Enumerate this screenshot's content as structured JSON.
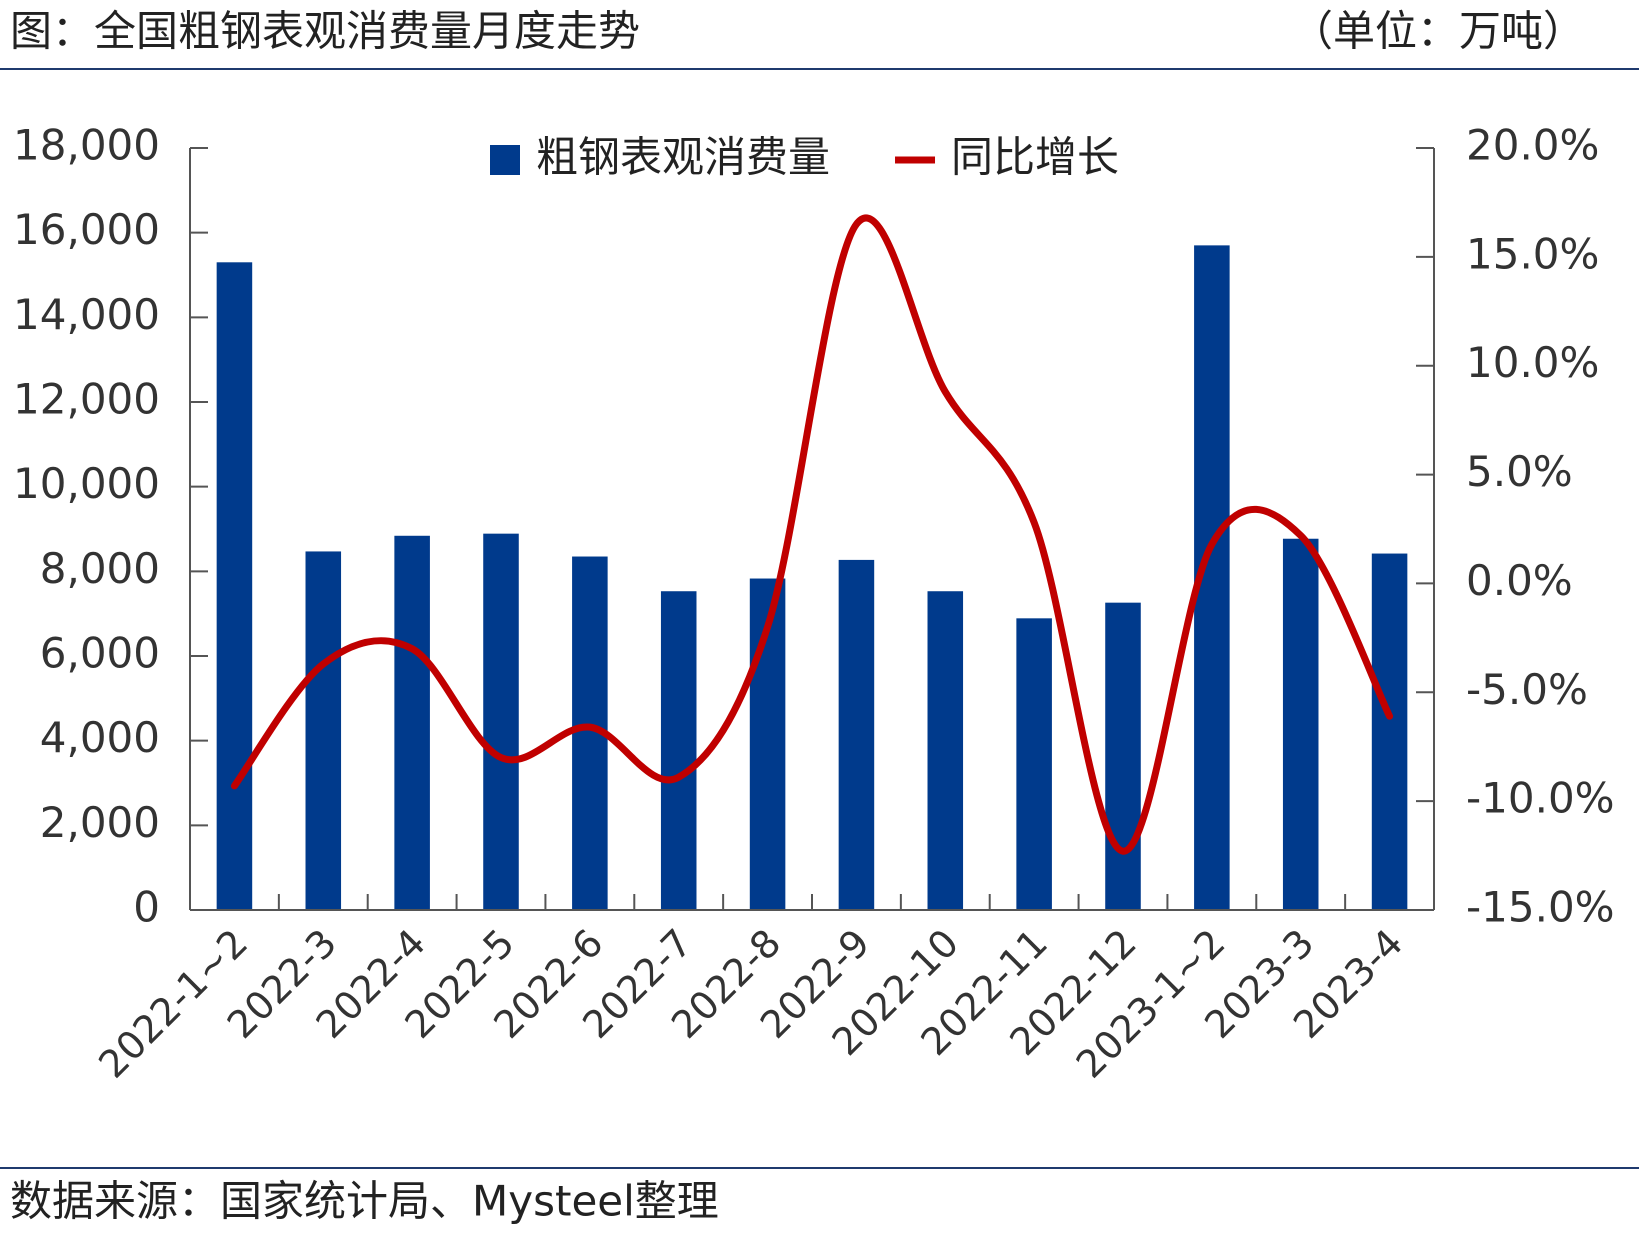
{
  "chart_data": {
    "type": "bar_line",
    "title": "图：全国粗钢表观消费量月度走势",
    "unit": "（单位：万吨）",
    "source": "数据来源：国家统计局、Mysteel整理",
    "categories": [
      "2022-1~2",
      "2022-3",
      "2022-4",
      "2022-5",
      "2022-6",
      "2022-7",
      "2022-8",
      "2022-9",
      "2022-10",
      "2022-11",
      "2022-12",
      "2023-1~2",
      "2023-3",
      "2023-4"
    ],
    "series": [
      {
        "name": "粗钢表观消费量",
        "color": "#003a8c",
        "type": "bar",
        "values": [
          15300,
          8470,
          8840,
          8890,
          8350,
          7530,
          7830,
          8270,
          7530,
          6890,
          7260,
          15700,
          8770,
          8420
        ]
      },
      {
        "name": "同比增长",
        "color": "#c00000",
        "type": "line",
        "axis": "y2",
        "values": [
          -9.3,
          -3.7,
          -3.0,
          -8.0,
          -6.6,
          -8.9,
          -2.0,
          16.5,
          8.8,
          2.8,
          -12.3,
          1.8,
          2.2,
          -6.1
        ]
      }
    ],
    "ylim": [
      0,
      18000
    ],
    "yticks": [
      0,
      {
        "value": 2000,
        "label": "2,000"
      },
      {
        "value": 4000,
        "label": "4,000"
      },
      {
        "value": 6000,
        "label": "6,000"
      },
      {
        "value": 8000,
        "label": "8,000"
      },
      {
        "value": 10000,
        "label": "10,000"
      },
      {
        "value": 12000,
        "label": "12,000"
      },
      {
        "value": 14000,
        "label": "14,000"
      },
      {
        "value": 16000,
        "label": "16,000"
      },
      {
        "value": 18000,
        "label": "18,000"
      }
    ],
    "y2lim": [
      -15,
      20
    ],
    "y2ticks": [
      {
        "value": -15,
        "label": "-15.0%"
      },
      {
        "value": -10,
        "label": "-10.0%"
      },
      {
        "value": -5,
        "label": "-5.0%"
      },
      {
        "value": 0,
        "label": "0.0%"
      },
      {
        "value": 5,
        "label": "5.0%"
      },
      {
        "value": 10,
        "label": "10.0%"
      },
      {
        "value": 15,
        "label": "15.0%"
      },
      {
        "value": 20,
        "label": "20.0%"
      }
    ],
    "legend": "top"
  }
}
